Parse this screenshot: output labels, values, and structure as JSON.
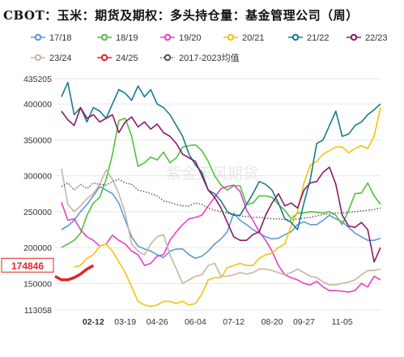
{
  "chart_data": {
    "type": "line",
    "title": "CBOT：玉米：期货及期权：多头持仓量：基金管理公司（周）",
    "xlabel": "",
    "ylabel": "",
    "ylim": [
      113058,
      435205
    ],
    "yticks": [
      113058,
      150000,
      200000,
      250000,
      300000,
      350000,
      400000,
      435205
    ],
    "xticks": [
      "02-12",
      "03-19",
      "04-26",
      "06-04",
      "07-12",
      "08-20",
      "09-27",
      "11-05"
    ],
    "highlight_tick": "02-12",
    "highlight_value": "174846",
    "watermark": "紫金天风期货",
    "grid": true,
    "legend_position": "top",
    "x_count": 52,
    "series": [
      {
        "name": "17/18",
        "color": "#5b9bd5",
        "dash": "solid",
        "values": [
          null,
          null,
          null,
          null,
          null,
          null,
          null,
          null,
          null,
          null,
          null,
          null,
          null,
          null,
          null,
          null,
          null,
          null,
          null,
          null,
          null,
          null,
          null,
          null,
          null,
          null,
          null,
          null,
          null,
          null,
          null,
          null,
          null,
          null,
          null,
          null,
          null,
          null,
          null,
          null,
          null,
          null,
          null,
          null,
          null,
          null,
          null,
          null,
          null,
          null,
          null,
          null
        ]
      },
      {
        "name": "18/19",
        "color": "#4fc43c",
        "dash": "solid",
        "values": [
          null,
          null,
          null,
          null,
          null,
          null,
          null,
          null,
          null,
          null,
          null,
          null,
          null,
          null,
          null,
          null,
          null,
          null,
          null,
          null,
          null,
          null,
          null,
          null,
          null,
          null,
          null,
          null,
          null,
          null,
          null,
          null,
          null,
          null,
          null,
          null,
          null,
          null,
          null,
          null,
          null,
          null,
          null,
          null,
          null,
          null,
          null,
          null,
          null,
          null,
          null,
          null
        ]
      },
      {
        "name": "19/20",
        "color": "#e83fc9",
        "dash": "solid",
        "values": [
          null,
          null,
          null,
          null,
          null,
          null,
          null,
          null,
          null,
          null,
          null,
          null,
          null,
          null,
          null,
          null,
          null,
          null,
          null,
          null,
          null,
          null,
          null,
          null,
          null,
          null,
          null,
          null,
          null,
          null,
          null,
          null,
          null,
          null,
          null,
          null,
          null,
          null,
          null,
          null,
          null,
          null,
          null,
          null,
          null,
          null,
          null,
          null,
          null,
          null,
          null,
          null
        ]
      },
      {
        "name": "20/21",
        "color": "#f5c20b",
        "dash": "solid",
        "values": [
          null,
          null,
          null,
          null,
          null,
          null,
          null,
          null,
          null,
          null,
          null,
          null,
          null,
          null,
          null,
          null,
          null,
          null,
          null,
          null,
          null,
          null,
          null,
          null,
          null,
          null,
          null,
          null,
          null,
          null,
          null,
          null,
          null,
          null,
          null,
          null,
          null,
          null,
          null,
          null,
          null,
          null,
          null,
          null,
          null,
          null,
          null,
          null,
          null,
          null,
          null,
          null
        ]
      },
      {
        "name": "21/22",
        "color": "#1a7a8c",
        "dash": "solid",
        "values": [
          null,
          null,
          null,
          null,
          null,
          null,
          null,
          null,
          null,
          null,
          null,
          null,
          null,
          null,
          null,
          null,
          null,
          null,
          null,
          null,
          null,
          null,
          null,
          null,
          null,
          null,
          null,
          null,
          null,
          null,
          null,
          null,
          null,
          null,
          null,
          null,
          null,
          null,
          null,
          null,
          null,
          null,
          null,
          null,
          null,
          null,
          null,
          null,
          null,
          null,
          null,
          null
        ]
      },
      {
        "name": "22/23",
        "color": "#8b1a6b",
        "dash": "solid",
        "values": [
          null,
          null,
          null,
          null,
          null,
          null,
          null,
          null,
          null,
          null,
          null,
          null,
          null,
          null,
          null,
          null,
          null,
          null,
          null,
          null,
          null,
          null,
          null,
          null,
          null,
          null,
          null,
          null,
          null,
          null,
          null,
          null,
          null,
          null,
          null,
          null,
          null,
          null,
          null,
          null,
          null,
          null,
          null,
          null,
          null,
          null,
          null,
          null,
          null,
          null,
          null,
          null
        ]
      },
      {
        "name": "23/24",
        "color": "#c9b5a0",
        "dash": "solid",
        "values": [
          null,
          null,
          null,
          null,
          null,
          null,
          null,
          null,
          null,
          null,
          null,
          null,
          null,
          null,
          null,
          null,
          null,
          null,
          null,
          null,
          null,
          null,
          null,
          null,
          null,
          null,
          null,
          null,
          null,
          null,
          null,
          null,
          null,
          null,
          null,
          null,
          null,
          null,
          null,
          null,
          null,
          null,
          null,
          null,
          null,
          null,
          null,
          null,
          null,
          null,
          null,
          null
        ]
      },
      {
        "name": "24/25",
        "color": "#e0262b",
        "dash": "solid",
        "values": [
          null,
          null,
          null,
          null,
          null,
          null,
          null,
          null,
          null,
          null,
          null,
          null,
          null,
          null,
          null,
          null,
          null,
          null,
          null,
          null,
          null,
          null,
          null,
          null,
          null,
          null,
          null,
          null,
          null,
          null,
          null,
          null,
          null,
          null,
          null,
          null,
          null,
          null,
          null,
          null,
          null,
          null,
          null,
          null,
          null,
          null,
          null,
          null,
          null,
          null,
          null,
          null
        ]
      },
      {
        "name": "2017-2023均值",
        "color": "#555555",
        "dash": "dotted",
        "values": [
          null,
          null,
          null,
          null,
          null,
          null,
          null,
          null,
          null,
          null,
          null,
          null,
          null,
          null,
          null,
          null,
          null,
          null,
          null,
          null,
          null,
          null,
          null,
          null,
          null,
          null,
          null,
          null,
          null,
          null,
          null,
          null,
          null,
          null,
          null,
          null,
          null,
          null,
          null,
          null,
          null,
          null,
          null,
          null,
          null,
          null,
          null,
          null,
          null,
          null,
          null,
          null
        ]
      }
    ]
  }
}
